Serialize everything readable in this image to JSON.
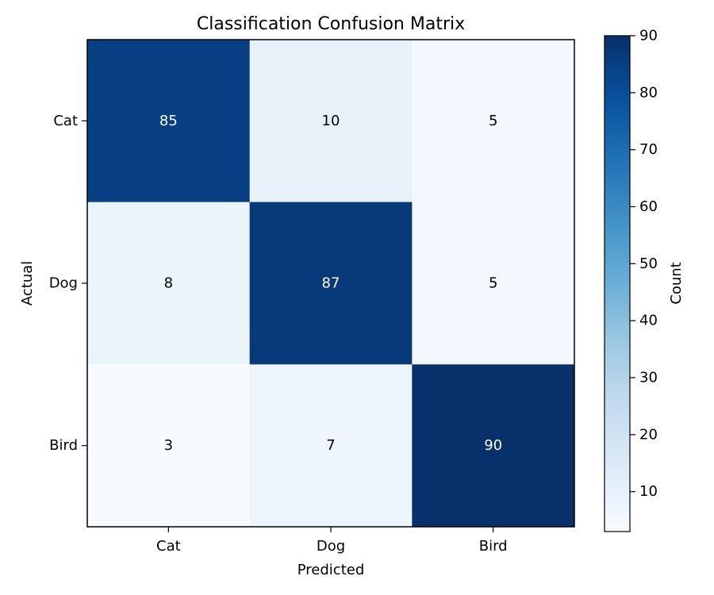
{
  "chart_data": {
    "type": "heatmap",
    "title": "Classification Confusion Matrix",
    "xlabel": "Predicted",
    "ylabel": "Actual",
    "x_categories": [
      "Cat",
      "Dog",
      "Bird"
    ],
    "y_categories": [
      "Cat",
      "Dog",
      "Bird"
    ],
    "values": [
      [
        85,
        10,
        5
      ],
      [
        8,
        87,
        5
      ],
      [
        3,
        7,
        90
      ]
    ],
    "colormap": "Blues",
    "colorbar": {
      "label": "Count",
      "range": [
        3,
        90
      ],
      "ticks": [
        10,
        20,
        30,
        40,
        50,
        60,
        70,
        80,
        90
      ]
    },
    "colors": {
      "text_on_dark": "#ffffff",
      "text_on_light": "#000000",
      "frame": "#000000"
    }
  }
}
